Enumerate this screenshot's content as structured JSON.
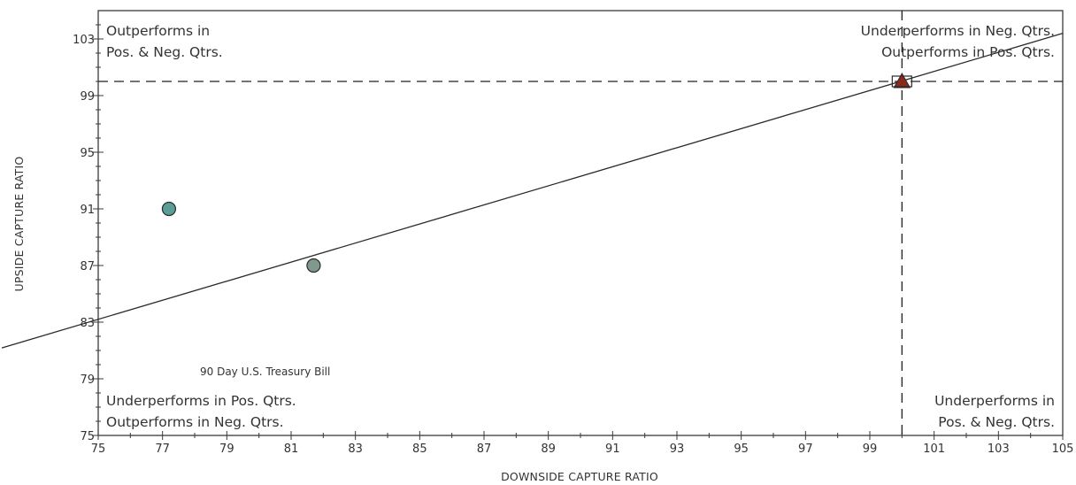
{
  "chart_data": {
    "type": "scatter",
    "title": "",
    "xlabel": "DOWNSIDE CAPTURE RATIO",
    "ylabel": "UPSIDE CAPTURE RATIO",
    "xlim": [
      75,
      105
    ],
    "ylim": [
      75,
      105
    ],
    "x_ticks": [
      75,
      77,
      79,
      81,
      83,
      85,
      87,
      89,
      91,
      93,
      95,
      97,
      99,
      101,
      103,
      105
    ],
    "y_ticks": [
      75,
      79,
      83,
      87,
      91,
      95,
      99,
      103
    ],
    "grid": false,
    "reference_lines": {
      "x": 100,
      "y": 100,
      "style": "dashed"
    },
    "regression_line": [
      {
        "x": 75,
        "y": 83.2
      },
      {
        "x": 105,
        "y": 103.4
      }
    ],
    "points": [
      {
        "x": 77.2,
        "y": 91.0,
        "marker": "circle",
        "color": "#5b9e98"
      },
      {
        "x": 81.7,
        "y": 87.0,
        "marker": "circle",
        "color": "#7f9a8c"
      },
      {
        "x": 100.0,
        "y": 100.0,
        "marker": "triangle",
        "color": "#8b2a1a"
      },
      {
        "x": 100.0,
        "y": 100.0,
        "marker": "square",
        "color": "#ffffff"
      }
    ],
    "quadrant_labels": {
      "top_left": [
        "Outperforms in",
        "Pos. & Neg. Qtrs."
      ],
      "top_right": [
        "Underperforms in Neg. Qtrs.",
        "Outperforms in Pos. Qtrs."
      ],
      "bottom_left": [
        "Underperforms in Pos. Qtrs.",
        "Outperforms in Neg. Qtrs."
      ],
      "bottom_right": [
        "Underperforms in",
        "Pos. & Neg. Qtrs."
      ]
    },
    "annotation": "90 Day U.S. Treasury Bill"
  }
}
